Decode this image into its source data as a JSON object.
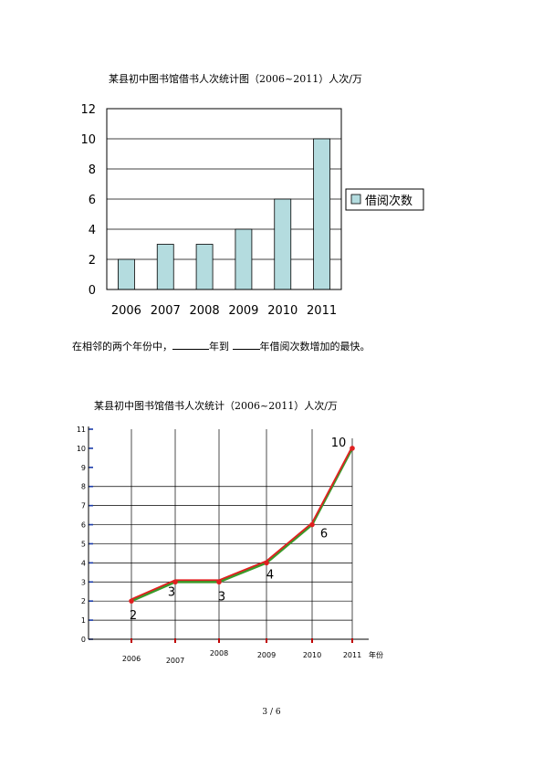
{
  "page": {
    "question_parts": [
      "在相邻的两个年份中，",
      "年到",
      "年借阅次数增加的最快。"
    ],
    "page_number": "3 / 6"
  },
  "colors": {
    "bar_fill": "#b4dcdf",
    "bar_stroke": "#000000",
    "line_green": "#3a9a2a",
    "line_red": "#e02020",
    "marker_red": "#e02020"
  },
  "chart_data": [
    {
      "type": "bar",
      "title": "某县初中图书馆借书人次统计图（2006~2011）人次/万",
      "categories": [
        "2006",
        "2007",
        "2008",
        "2009",
        "2010",
        "2011"
      ],
      "series": [
        {
          "name": "借阅次数",
          "values": [
            2,
            3,
            3,
            4,
            6,
            10
          ]
        }
      ],
      "ylim": [
        0,
        12
      ],
      "yticks": [
        "0",
        "2",
        "4",
        "6",
        "8",
        "10",
        "12"
      ],
      "grid": true,
      "legend": "right"
    },
    {
      "type": "line",
      "title": "某县初中图书馆借书人次统计（2006~2011）人次/万",
      "categories": [
        "2006",
        "2007",
        "2008",
        "2009",
        "2010",
        "2011"
      ],
      "xlabel": "年份",
      "series": [
        {
          "values": [
            2,
            3,
            3,
            4,
            6,
            10
          ],
          "color": "green"
        },
        {
          "values": [
            2,
            3,
            3,
            4,
            6,
            10
          ],
          "color": "red"
        }
      ],
      "data_labels": [
        "2",
        "3",
        "3",
        "4",
        "6",
        "10"
      ],
      "ylim": [
        0,
        11
      ],
      "yticks": [
        "0",
        "1",
        "2",
        "3",
        "4",
        "5",
        "6",
        "7",
        "8",
        "9",
        "10",
        "11"
      ],
      "grid": true
    }
  ]
}
